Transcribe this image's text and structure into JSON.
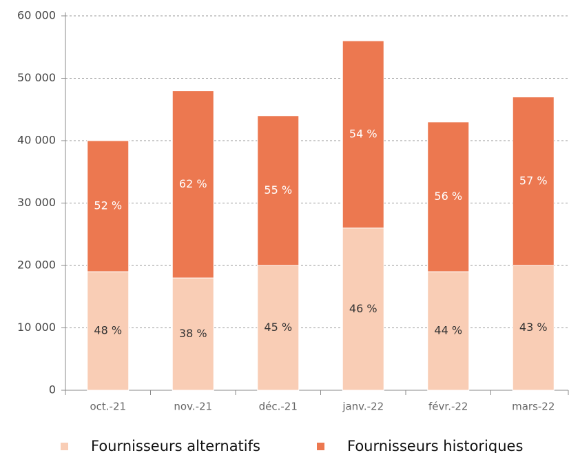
{
  "chart_data": {
    "type": "stacked_bar",
    "categories": [
      "oct.-21",
      "nov.-21",
      "déc.-21",
      "janv.-22",
      "févr.-22",
      "mars-22"
    ],
    "series": [
      {
        "name": "Fournisseurs alternatifs",
        "color": "#f9cdb5",
        "values": [
          19000,
          18000,
          20000,
          26000,
          19000,
          20000
        ],
        "share_labels": [
          "48 %",
          "38 %",
          "45 %",
          "46 %",
          "44 %",
          "43 %"
        ]
      },
      {
        "name": "Fournisseurs historiques",
        "color": "#ec7850",
        "values": [
          21000,
          30000,
          24000,
          30000,
          24000,
          27000
        ],
        "share_labels": [
          "52 %",
          "62 %",
          "55 %",
          "54 %",
          "56 %",
          "57 %"
        ]
      }
    ],
    "ylim": [
      0,
      60000
    ],
    "yticks": [
      0,
      {
        "value": 10000,
        "label": "10 000"
      },
      {
        "value": 20000,
        "label": "20 000"
      },
      {
        "value": 30000,
        "label": "30 000"
      },
      {
        "value": 40000,
        "label": "40 000"
      },
      {
        "value": 50000,
        "label": "50 000"
      },
      {
        "value": 60000,
        "label": "60 000"
      }
    ],
    "grid": true,
    "legend": "bottom"
  }
}
